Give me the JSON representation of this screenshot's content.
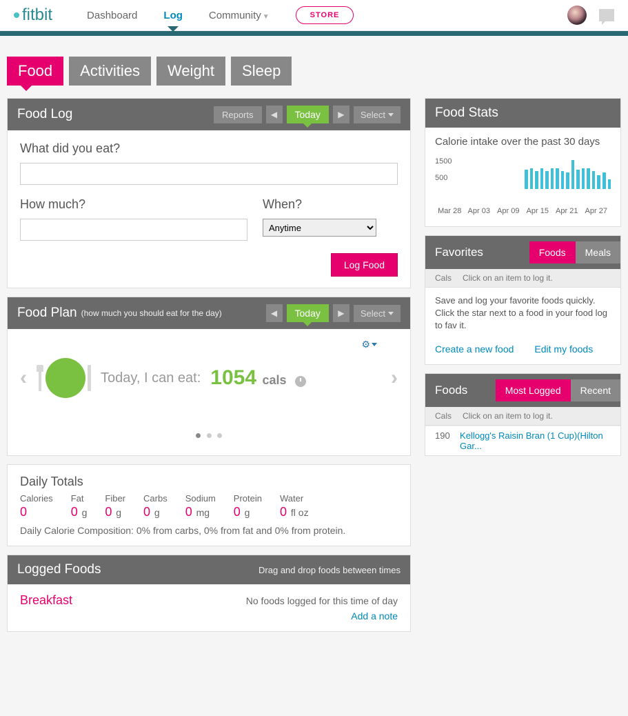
{
  "nav": {
    "logo": "fitbit",
    "items": [
      "Dashboard",
      "Log",
      "Community"
    ],
    "active_index": 1,
    "store": "STORE"
  },
  "tabs": {
    "items": [
      "Food",
      "Activities",
      "Weight",
      "Sleep"
    ],
    "active_index": 0
  },
  "foodlog": {
    "title": "Food Log",
    "reports": "Reports",
    "today": "Today",
    "select": "Select",
    "q1": "What did you eat?",
    "q2": "How much?",
    "q3": "When?",
    "when_value": "Anytime",
    "submit": "Log Food"
  },
  "plan": {
    "title": "Food Plan",
    "subtitle": "(how much you should eat for the day)",
    "today": "Today",
    "select": "Select",
    "text": "Today, I can eat:",
    "cals": "1054",
    "unit": "cals"
  },
  "totals": {
    "title": "Daily Totals",
    "cols": [
      {
        "label": "Calories",
        "val": "0",
        "unit": ""
      },
      {
        "label": "Fat",
        "val": "0",
        "unit": "g"
      },
      {
        "label": "Fiber",
        "val": "0",
        "unit": "g"
      },
      {
        "label": "Carbs",
        "val": "0",
        "unit": "g"
      },
      {
        "label": "Sodium",
        "val": "0",
        "unit": "mg"
      },
      {
        "label": "Protein",
        "val": "0",
        "unit": "g"
      },
      {
        "label": "Water",
        "val": "0",
        "unit": "fl oz"
      }
    ],
    "comp": "Daily Calorie Composition: 0% from carbs, 0% from fat and 0% from protein."
  },
  "logged": {
    "title": "Logged Foods",
    "hint": "Drag and drop foods between times",
    "meal": "Breakfast",
    "empty": "No foods logged for this time of day",
    "add_note": "Add a note"
  },
  "stats": {
    "title": "Food Stats",
    "subtitle": "Calorie intake over the past 30 days",
    "ylabels": [
      "1500",
      "500"
    ],
    "xlabels": [
      "Mar 28",
      "Apr 03",
      "Apr 09",
      "Apr 15",
      "Apr 21",
      "Apr 27"
    ],
    "bar_color": "#3ec0d8",
    "bars": [
      28,
      30,
      26,
      30,
      26,
      30,
      30,
      26,
      24,
      42,
      28,
      30,
      30,
      26,
      20,
      24,
      14
    ]
  },
  "favorites": {
    "title": "Favorites",
    "tabs": [
      "Foods",
      "Meals"
    ],
    "active_tab": 0,
    "cals_label": "Cals",
    "hint": "Click on an item to log it.",
    "text": "Save and log your favorite foods quickly. Click the star next to a food in your food log to fav it.",
    "link1": "Create a new food",
    "link2": "Edit my foods"
  },
  "foods": {
    "title": "Foods",
    "tabs": [
      "Most Logged",
      "Recent"
    ],
    "active_tab": 0,
    "cals_label": "Cals",
    "hint": "Click on an item to log it.",
    "items": [
      {
        "cals": "190",
        "name": "Kellogg's Raisin Bran (1 Cup)(Hilton Gar..."
      }
    ]
  },
  "colors": {
    "pink": "#e6006d",
    "green": "#7ac142",
    "teal": "#276873",
    "link": "#0089bc",
    "gray_hdr": "#6a6a6a"
  }
}
